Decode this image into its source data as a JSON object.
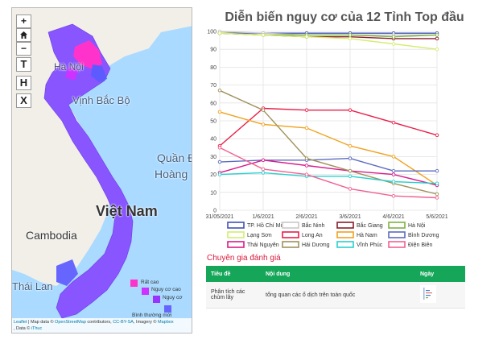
{
  "map": {
    "zoom_in": "+",
    "home_icon": "home-icon",
    "zoom_out": "−",
    "layer_buttons": [
      "T",
      "H",
      "X"
    ],
    "labels": {
      "hanoi": "Hà Nội",
      "gulf": "Vịnh Bắc Bộ",
      "islands_line1": "Quần Đ",
      "islands_line2": "Hoàng",
      "vietnam": "Việt Nam",
      "cambodia": "Cambodia",
      "thailand": "Thái Lan"
    },
    "legend": [
      {
        "label": "Rất cao",
        "color": "#ff33cc"
      },
      {
        "label": "Nguy cơ cao",
        "color": "#cc33ff"
      },
      {
        "label": "Nguy cơ",
        "color": "#9933ff"
      },
      {
        "label": "Bình thường mới",
        "color": "#6666ff"
      }
    ],
    "attribution": {
      "leaflet": "Leaflet",
      "text1": " | Map data © ",
      "osm": "OpenStreetMap",
      "text2": " contributors, ",
      "license": "CC-BY-SA",
      "text3": ", Imagery © ",
      "mapbox": "Mapbox",
      "line2_prefix": ", Data © ",
      "ithuc": "iThuc"
    }
  },
  "chart_title": "Diễn biến nguy cơ của 12 Tỉnh Top đầu",
  "chart_data": {
    "type": "line",
    "categories": [
      "31/05/2021",
      "1/6/2021",
      "2/6/2021",
      "3/6/2021",
      "4/6/2021",
      "5/6/2021"
    ],
    "x": [
      0,
      1,
      2,
      3,
      4,
      5
    ],
    "ylim": [
      0,
      100
    ],
    "yticks": [
      0,
      10,
      20,
      30,
      40,
      50,
      60,
      70,
      80,
      90,
      100
    ],
    "series": [
      {
        "name": "TP. Hồ Chí Minh",
        "color": "#3f51b5",
        "points": [
          [
            0,
            99
          ],
          [
            1,
            99
          ],
          [
            2,
            99
          ],
          [
            3,
            99
          ],
          [
            4,
            99
          ],
          [
            5,
            99
          ]
        ]
      },
      {
        "name": "Bắc Ninh",
        "color": "#c8c8c8",
        "points": [
          [
            0,
            100
          ],
          [
            1,
            99
          ],
          [
            2,
            98
          ],
          [
            3,
            98
          ],
          [
            4,
            98
          ],
          [
            5,
            98
          ]
        ]
      },
      {
        "name": "Bắc Giang",
        "color": "#8b1a2b",
        "points": [
          [
            0,
            99
          ],
          [
            1,
            98
          ],
          [
            2,
            97
          ],
          [
            3,
            97
          ],
          [
            4,
            96
          ],
          [
            5,
            96
          ]
        ]
      },
      {
        "name": "Hà Nội",
        "color": "#7cb342",
        "points": [
          [
            0,
            99
          ],
          [
            1,
            98
          ],
          [
            2,
            98
          ],
          [
            3,
            98
          ],
          [
            4,
            97
          ],
          [
            5,
            98
          ]
        ]
      },
      {
        "name": "Lạng Sơn",
        "color": "#d4ed6e",
        "points": [
          [
            0,
            99
          ],
          [
            1,
            98
          ],
          [
            2,
            97
          ],
          [
            3,
            96
          ],
          [
            4,
            93
          ],
          [
            5,
            90
          ]
        ]
      },
      {
        "name": "Long An",
        "color": "#e91e48",
        "points": [
          [
            0,
            36
          ],
          [
            1,
            57
          ],
          [
            2,
            56
          ],
          [
            3,
            56
          ],
          [
            4,
            49
          ],
          [
            5,
            42
          ]
        ]
      },
      {
        "name": "Hà Nam",
        "color": "#f0a21f",
        "points": [
          [
            0,
            55
          ],
          [
            1,
            48
          ],
          [
            2,
            46
          ],
          [
            3,
            36
          ],
          [
            4,
            30
          ],
          [
            5,
            14
          ]
        ]
      },
      {
        "name": "Bình Dương",
        "color": "#5c6bc0",
        "points": [
          [
            0,
            27
          ],
          [
            1,
            28
          ],
          [
            2,
            28
          ],
          [
            3,
            29
          ],
          [
            4,
            22
          ],
          [
            5,
            22
          ]
        ]
      },
      {
        "name": "Thái Nguyên",
        "color": "#d81b8c",
        "points": [
          [
            0,
            21
          ],
          [
            1,
            28
          ],
          [
            2,
            25
          ],
          [
            3,
            22
          ],
          [
            4,
            20
          ],
          [
            5,
            14
          ]
        ]
      },
      {
        "name": "Hải Dương",
        "color": "#a0915a",
        "points": [
          [
            0,
            67
          ],
          [
            1,
            56
          ],
          [
            2,
            29
          ],
          [
            3,
            22
          ],
          [
            4,
            15
          ],
          [
            5,
            9
          ]
        ]
      },
      {
        "name": "Vĩnh Phúc",
        "color": "#26d0ce",
        "points": [
          [
            0,
            20
          ],
          [
            1,
            21
          ],
          [
            2,
            19
          ],
          [
            3,
            19
          ],
          [
            4,
            16
          ],
          [
            5,
            15
          ]
        ]
      },
      {
        "name": "Điện Biên",
        "color": "#f06292",
        "points": [
          [
            0,
            35
          ],
          [
            1,
            23
          ],
          [
            2,
            20
          ],
          [
            3,
            12
          ],
          [
            4,
            8
          ],
          [
            5,
            7
          ]
        ]
      }
    ]
  },
  "expert": {
    "heading": "Chuyên gia đánh giá",
    "columns": [
      "Tiêu đề",
      "Nội dung",
      "Ngày"
    ],
    "rows": [
      {
        "title_line1": "Phân tích các",
        "title_line2": "chùm lây",
        "content": "tổng quan các ổ dịch trên toàn quốc"
      }
    ]
  }
}
